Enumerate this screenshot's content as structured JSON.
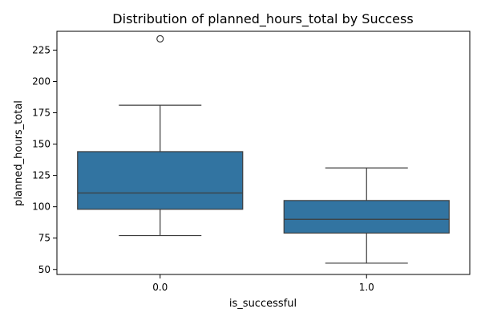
{
  "chart_data": {
    "type": "box",
    "title": "Distribution of planned_hours_total by Success",
    "xlabel": "is_successful",
    "ylabel": "planned_hours_total",
    "categories": [
      "0.0",
      "1.0"
    ],
    "ylim": [
      46,
      240
    ],
    "yticks": [
      50,
      75,
      100,
      125,
      150,
      175,
      200,
      225
    ],
    "grid": false,
    "legend": "none",
    "colors": {
      "box_fill": "#3274a1",
      "line": "#3d3d3d",
      "axis": "#000000",
      "background": "#ffffff"
    },
    "boxes": [
      {
        "category": "0.0",
        "whisker_low": 77,
        "q1": 98,
        "median": 111,
        "q3": 144,
        "whisker_high": 181,
        "outliers": [
          234
        ]
      },
      {
        "category": "1.0",
        "whisker_low": 55,
        "q1": 79,
        "median": 90,
        "q3": 105,
        "whisker_high": 131,
        "outliers": []
      }
    ]
  }
}
